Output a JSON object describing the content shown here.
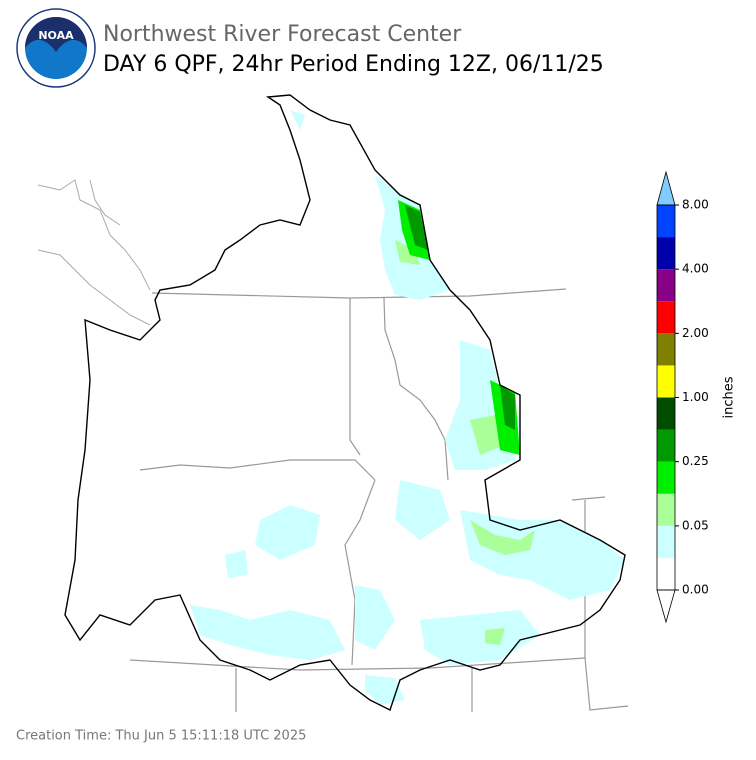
{
  "header": {
    "title": "Northwest River Forecast Center",
    "subtitle": "DAY 6 QPF, 24hr Period Ending 12Z, 06/11/25",
    "logo": "NOAA"
  },
  "colorbar": {
    "label": "inches",
    "ticks": [
      "0.00",
      "0.05",
      "0.25",
      "1.00",
      "2.00",
      "4.00",
      "8.00"
    ],
    "colors": [
      "#ffffff",
      "#ccffff",
      "#aaff99",
      "#00ee00",
      "#009900",
      "#004d00",
      "#ffff00",
      "#808000",
      "#ff0000",
      "#880088",
      "#0000aa",
      "#0044ff"
    ],
    "under_color": "#ffffff",
    "over_color": "#80ccff"
  },
  "footer": {
    "creation_time": "Creation Time: Thu Jun 5 15:11:18 UTC 2025"
  }
}
